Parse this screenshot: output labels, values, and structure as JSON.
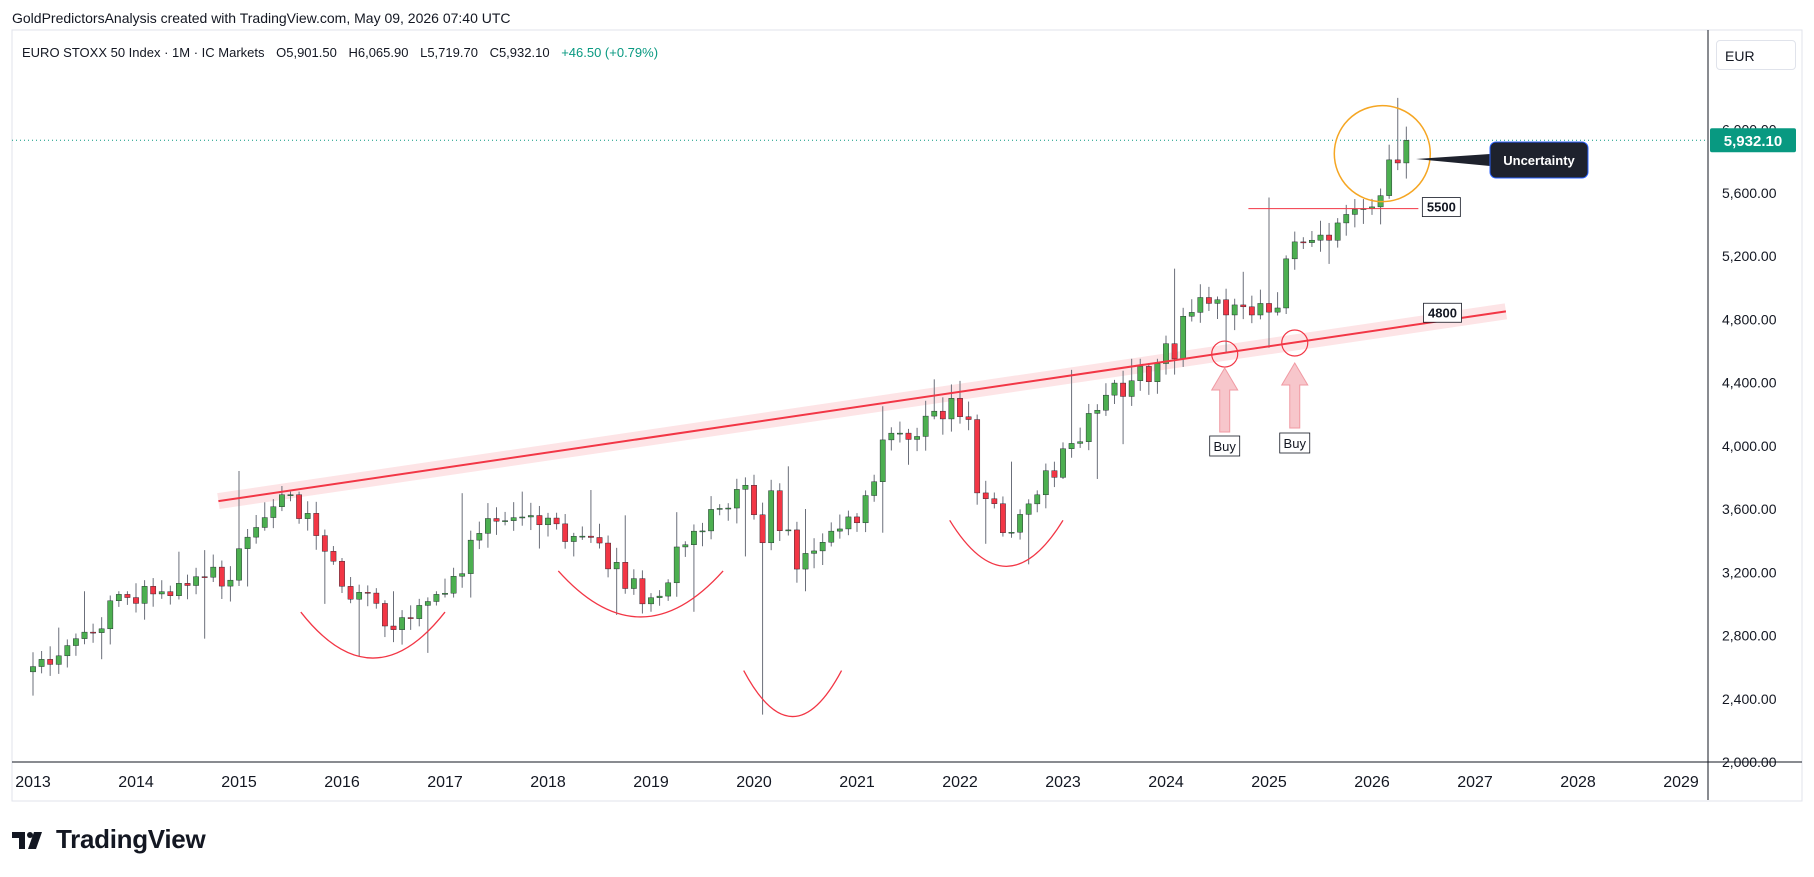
{
  "header": {
    "credit": "GoldPredictorsAnalysis created with TradingView.com, May 09, 2026 07:40 UTC"
  },
  "symbol": {
    "name": "EURO STOXX 50 Index · 1M · IC Markets",
    "open": "O5,901.50",
    "high": "H6,065.90",
    "low": "L5,719.70",
    "close": "C5,932.10",
    "change": "+46.50 (+0.79%)"
  },
  "currency": "EUR",
  "brand": {
    "name": "TradingView"
  },
  "colors": {
    "up": "#4caf50",
    "down": "#f23645",
    "trendline": "#f23645",
    "band": "#fde4e6",
    "price_tag": "#089981",
    "circle_orange": "#f5a623",
    "callout_bg": "#1e222d",
    "callout_border": "#2962ff",
    "arrow_fill": "#f7c6cb"
  },
  "chart_data": {
    "type": "candlestick",
    "timeframe": "1M",
    "y_ticks": [
      "2,000.00",
      "2,400.00",
      "2,800.00",
      "3,200.00",
      "3,600.00",
      "4,000.00",
      "4,400.00",
      "4,800.00",
      "5,200.00",
      "5,600.00",
      "6,000.00"
    ],
    "y_tick_values": [
      2000,
      2400,
      2800,
      3200,
      3600,
      4000,
      4400,
      4800,
      5200,
      5600,
      6000
    ],
    "x_ticks": [
      "2013",
      "2014",
      "2015",
      "2016",
      "2017",
      "2018",
      "2019",
      "2020",
      "2021",
      "2022",
      "2023",
      "2024",
      "2025",
      "2026",
      "2027",
      "2028",
      "2029"
    ],
    "last_price": {
      "value": 5932.1,
      "label": "5,932.10"
    },
    "candles_half_year": [
      {
        "t": 2013.0,
        "o": 2570,
        "h": 2850,
        "l": 2420,
        "c": 2780
      },
      {
        "t": 2013.5,
        "o": 2780,
        "h": 3080,
        "l": 2650,
        "c": 3040
      },
      {
        "t": 2014.0,
        "o": 3040,
        "h": 3330,
        "l": 2900,
        "c": 3130
      },
      {
        "t": 2014.5,
        "o": 3130,
        "h": 3340,
        "l": 2780,
        "c": 3150
      },
      {
        "t": 2015.0,
        "o": 3150,
        "h": 3840,
        "l": 3110,
        "c": 3690
      },
      {
        "t": 2015.5,
        "o": 3690,
        "h": 3710,
        "l": 3000,
        "c": 3270
      },
      {
        "t": 2016.0,
        "o": 3270,
        "h": 3290,
        "l": 2670,
        "c": 2860
      },
      {
        "t": 2016.5,
        "o": 2860,
        "h": 3080,
        "l": 2690,
        "c": 3060
      },
      {
        "t": 2017.0,
        "o": 3060,
        "h": 3700,
        "l": 3040,
        "c": 3540
      },
      {
        "t": 2017.5,
        "o": 3540,
        "h": 3710,
        "l": 3350,
        "c": 3500
      },
      {
        "t": 2018.0,
        "o": 3500,
        "h": 3720,
        "l": 3300,
        "c": 3420
      },
      {
        "t": 2018.5,
        "o": 3420,
        "h": 3560,
        "l": 2930,
        "c": 3000
      },
      {
        "t": 2019.0,
        "o": 3000,
        "h": 3580,
        "l": 2950,
        "c": 3460
      },
      {
        "t": 2019.5,
        "o": 3460,
        "h": 3800,
        "l": 3300,
        "c": 3750
      },
      {
        "t": 2020.0,
        "o": 3750,
        "h": 3870,
        "l": 2300,
        "c": 3220
      },
      {
        "t": 2020.5,
        "o": 3220,
        "h": 3600,
        "l": 3080,
        "c": 3550
      },
      {
        "t": 2021.0,
        "o": 3550,
        "h": 4250,
        "l": 3450,
        "c": 4080
      },
      {
        "t": 2021.5,
        "o": 4080,
        "h": 4420,
        "l": 3880,
        "c": 4300
      },
      {
        "t": 2022.0,
        "o": 4300,
        "h": 4410,
        "l": 3380,
        "c": 3450
      },
      {
        "t": 2022.5,
        "o": 3450,
        "h": 3900,
        "l": 3250,
        "c": 3800
      },
      {
        "t": 2023.0,
        "o": 3800,
        "h": 4480,
        "l": 3790,
        "c": 4320
      },
      {
        "t": 2023.5,
        "o": 4320,
        "h": 4550,
        "l": 4010,
        "c": 4520
      },
      {
        "t": 2024.0,
        "o": 4520,
        "h": 5120,
        "l": 4450,
        "c": 4900
      },
      {
        "t": 2024.5,
        "o": 4900,
        "h": 5100,
        "l": 4590,
        "c": 4900
      },
      {
        "t": 2025.0,
        "o": 4900,
        "h": 5570,
        "l": 4620,
        "c": 5300
      },
      {
        "t": 2025.5,
        "o": 5300,
        "h": 5560,
        "l": 5150,
        "c": 5500
      },
      {
        "t": 2026.0,
        "o": 5500,
        "h": 6200,
        "l": 5400,
        "c": 5932
      }
    ],
    "annotations": [
      {
        "type": "trendline",
        "from": {
          "t": 2014.8,
          "v": 3650
        },
        "to": {
          "t": 2027.3,
          "v": 4850
        }
      },
      {
        "type": "horizontal",
        "t_from": 2024.8,
        "t_to": 2026.45,
        "v": 5500,
        "label": "5500"
      },
      {
        "type": "label",
        "t": 2026.5,
        "v": 4800,
        "label": "4800"
      },
      {
        "type": "circle",
        "t": 2024.57,
        "v": 4580
      },
      {
        "type": "circle",
        "t": 2025.25,
        "v": 4650
      },
      {
        "type": "buy-arrow",
        "t": 2024.57,
        "label": "Buy"
      },
      {
        "type": "buy-arrow",
        "t": 2025.25,
        "label": "Buy"
      },
      {
        "type": "highlight-circle",
        "t": 2026.1,
        "v": 5860
      },
      {
        "type": "callout",
        "label": "Uncertainty"
      },
      {
        "type": "bowl",
        "t_from": 2015.6,
        "t_to": 2017.0
      },
      {
        "type": "bowl",
        "t_from": 2018.1,
        "t_to": 2019.7
      },
      {
        "type": "bowl",
        "t_from": 2019.9,
        "t_to": 2020.85
      },
      {
        "type": "bowl",
        "t_from": 2021.9,
        "t_to": 2023.0
      }
    ]
  }
}
